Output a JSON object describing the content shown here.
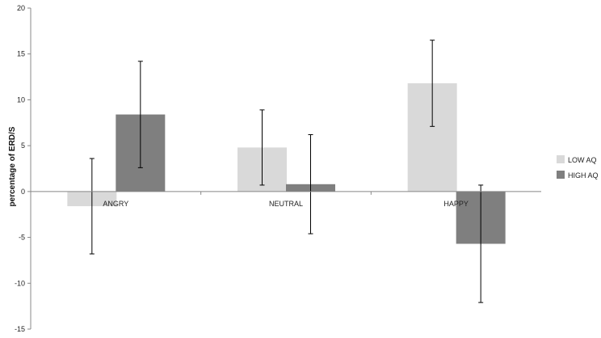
{
  "chart_data": {
    "type": "bar",
    "categories": [
      "ANGRY",
      "NEUTRAL",
      "HAPPY"
    ],
    "series": [
      {
        "name": "LOW AQ",
        "color": "#d9d9d9",
        "values": [
          -1.6,
          4.8,
          11.8
        ],
        "error": [
          5.2,
          4.1,
          4.7
        ]
      },
      {
        "name": "HIGH AQ",
        "color": "#7f7f7f",
        "values": [
          8.4,
          0.8,
          -5.7
        ],
        "error": [
          5.8,
          5.4,
          6.4
        ]
      }
    ],
    "ylabel": "percentage of ERD/S",
    "xlabel": "",
    "title": "",
    "ylim": [
      -15,
      20
    ],
    "yticks": [
      -15,
      -10,
      -5,
      0,
      5,
      10,
      15,
      20
    ],
    "grid": false,
    "legend_position": "right"
  }
}
